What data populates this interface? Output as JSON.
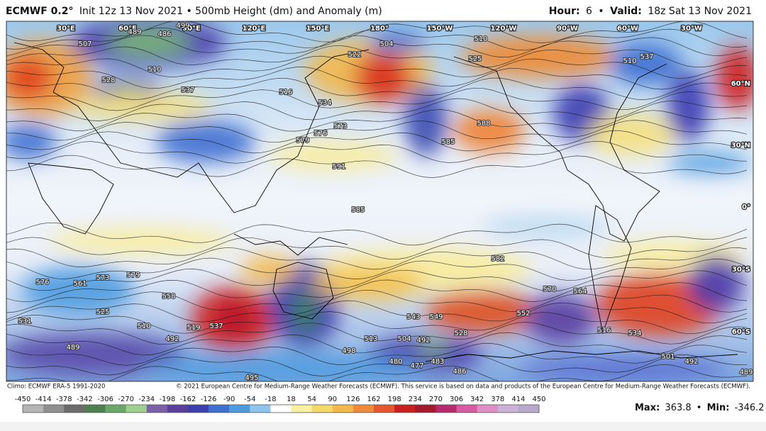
{
  "header": {
    "model": "ECMWF 0.2°",
    "init": "Init 12z 13 Nov 2021 • 500mb Height (dm) and Anomaly (m)",
    "hour_label": "Hour:",
    "hour": "6",
    "separator": "•",
    "valid_label": "Valid:",
    "valid": "18z Sat 13 Nov 2021"
  },
  "map": {
    "longitudes": [
      "30°E",
      "60°E",
      "90°E",
      "120°E",
      "150°E",
      "180°",
      "150°W",
      "120°W",
      "90°W",
      "60°W",
      "30°W"
    ],
    "latitudes": [
      "60°N",
      "30°N",
      "0°",
      "30°S",
      "60°S"
    ],
    "contour_labels": [
      "489",
      "486",
      "499",
      "507",
      "510",
      "528",
      "537",
      "504",
      "510",
      "522",
      "525",
      "510",
      "537",
      "534",
      "516",
      "573",
      "576",
      "579",
      "591",
      "588",
      "585",
      "585",
      "582",
      "561",
      "573",
      "579",
      "576",
      "558",
      "525",
      "531",
      "510",
      "519",
      "537",
      "492",
      "489",
      "543",
      "549",
      "552",
      "570",
      "564",
      "528",
      "513",
      "504",
      "492",
      "498",
      "480",
      "477",
      "483",
      "486",
      "495",
      "501",
      "492",
      "489",
      "534",
      "516"
    ]
  },
  "footer": {
    "climo": "Climo: ECMWF ERA-5 1991-2020",
    "copyright": "© 2021 European Centre for Medium-Range Weather Forecasts (ECMWF). This service is based on data and products of the European Centre for Medium-Range Weather Forecasts (ECMWF).",
    "colorbar_ticks": [
      -450,
      -414,
      -378,
      -342,
      -306,
      -270,
      -234,
      -198,
      -162,
      -126,
      -90,
      -54,
      -18,
      18,
      54,
      90,
      126,
      162,
      198,
      234,
      270,
      306,
      342,
      378,
      414,
      450
    ],
    "max_label": "Max:",
    "max": 363.8,
    "separator": "•",
    "min_label": "Min:",
    "min": -346.2
  }
}
